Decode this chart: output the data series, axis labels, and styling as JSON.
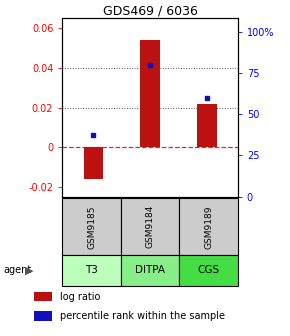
{
  "title": "GDS469 / 6036",
  "categories": [
    "GSM9185",
    "GSM9184",
    "GSM9189"
  ],
  "agents": [
    "T3",
    "DITPA",
    "CGS"
  ],
  "log_ratios": [
    -0.016,
    0.054,
    0.022
  ],
  "percentile_ranks": [
    0.375,
    0.8,
    0.6
  ],
  "ylim_left": [
    -0.025,
    0.065
  ],
  "ylim_right": [
    0.0,
    1.0833
  ],
  "yticks_left": [
    -0.02,
    0.0,
    0.02,
    0.04,
    0.06
  ],
  "ytick_labels_left": [
    "-0.02",
    "0",
    "0.02",
    "0.04",
    "0.06"
  ],
  "yticks_right": [
    0.0,
    0.25,
    0.5,
    0.75,
    1.0
  ],
  "ytick_labels_right": [
    "0",
    "25",
    "50",
    "75",
    "100%"
  ],
  "bar_color": "#bb1111",
  "dot_color": "#1111bb",
  "agent_colors": [
    "#bbffbb",
    "#88ee88",
    "#44dd44"
  ],
  "gsm_bg": "#cccccc",
  "hline_color": "#cc3333",
  "dotted_color": "#555555",
  "bar_width": 0.35,
  "legend_log_ratio_color": "#bb1111",
  "legend_pct_color": "#1111bb",
  "fig_width": 2.9,
  "fig_height": 3.36,
  "dpi": 100
}
